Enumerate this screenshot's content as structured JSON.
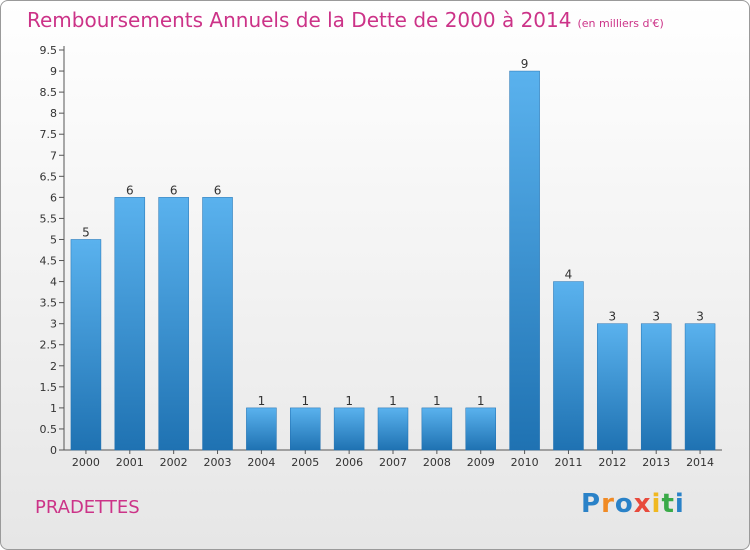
{
  "title": "Remboursements Annuels de la Dette de 2000 à 2014",
  "unit": "(en milliers d'€)",
  "town": "PRADETTES",
  "logo": {
    "letters": [
      "P",
      "r",
      "o",
      "x",
      "i",
      "t",
      "i"
    ],
    "colors": [
      "#2a82c8",
      "#f08a24",
      "#2a82c8",
      "#e84a3c",
      "#f0b820",
      "#3aaa48",
      "#2a82c8"
    ]
  },
  "colors": {
    "bar": "#3f9fe0",
    "bar_dark": "#1f6fb0",
    "title": "#cc3388"
  },
  "chart_data": {
    "type": "bar",
    "categories": [
      "2000",
      "2001",
      "2002",
      "2003",
      "2004",
      "2005",
      "2006",
      "2007",
      "2008",
      "2009",
      "2010",
      "2011",
      "2012",
      "2013",
      "2014"
    ],
    "values": [
      5,
      6,
      6,
      6,
      1,
      1,
      1,
      1,
      1,
      1,
      9,
      4,
      3,
      3,
      3
    ],
    "data_labels": [
      "5",
      "6",
      "6",
      "6",
      "1",
      "1",
      "1",
      "1",
      "1",
      "1",
      "9",
      "4",
      "3",
      "3",
      "3"
    ],
    "y_ticks": [
      "0",
      "0.5",
      "1",
      "1.5",
      "2",
      "2.5",
      "3",
      "3.5",
      "4",
      "4.5",
      "5",
      "5.5",
      "6",
      "6.5",
      "7",
      "7.5",
      "8",
      "8.5",
      "9",
      "9.5"
    ],
    "ylim": [
      0,
      9.5
    ],
    "grid": false
  }
}
